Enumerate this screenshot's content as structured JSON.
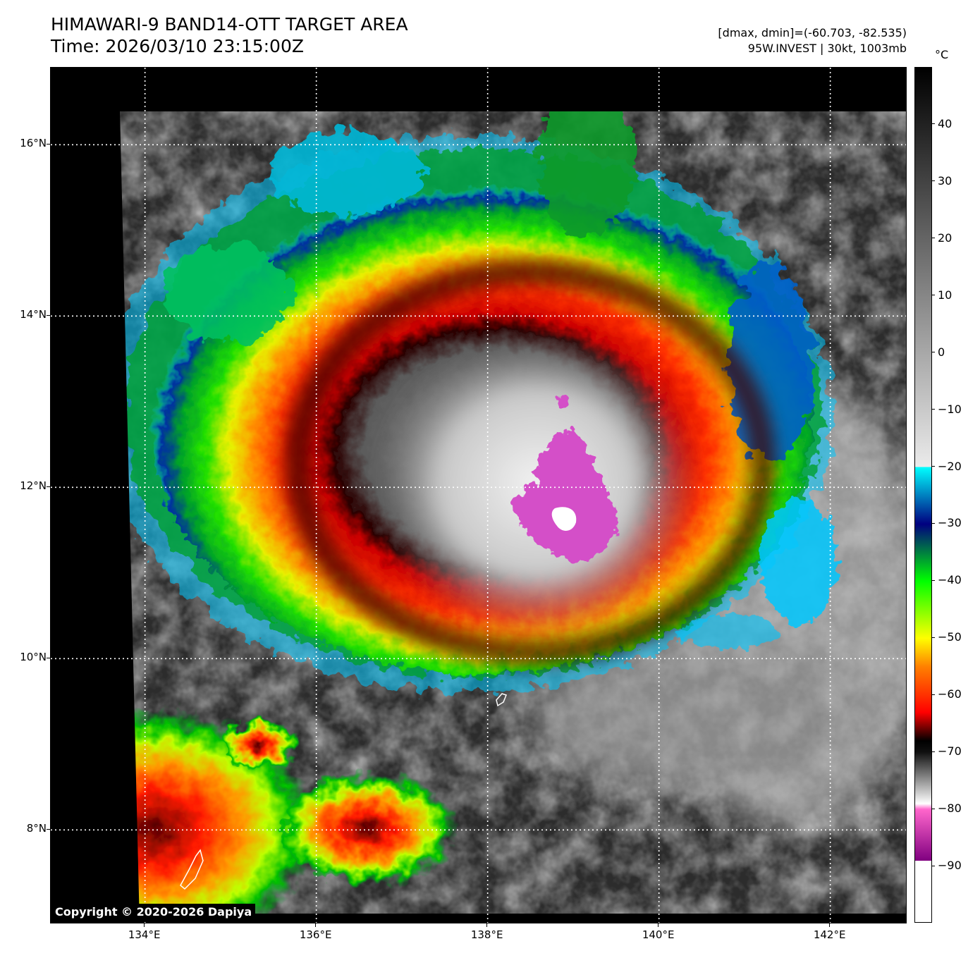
{
  "header": {
    "title_line1": "HIMAWARI-9 BAND14-OTT TARGET AREA",
    "title_line2": "Time: 2026/03/10 23:15:00Z",
    "info_line1": "[dmax, dmin]=(-60.703, -82.535)",
    "info_line2": "95W.INVEST | 30kt, 1003mb"
  },
  "map": {
    "lon_range": [
      132.9,
      142.9
    ],
    "lat_range": [
      6.9,
      16.9
    ],
    "lat_lines": [
      8,
      10,
      12,
      14,
      16
    ],
    "lon_lines": [
      134,
      136,
      138,
      140,
      142
    ],
    "lat_labels": [
      "16°N",
      "14°N",
      "12°N",
      "10°N",
      "8°N"
    ],
    "lon_labels": [
      "134°E",
      "136°E",
      "138°E",
      "140°E",
      "142°E"
    ],
    "storm_center": {
      "lon": 138.9,
      "lat": 11.6
    },
    "copyright": "Copyright © 2020-2026 Dapiya"
  },
  "colorbar": {
    "unit": "°C",
    "range": [
      -100,
      50
    ],
    "tick_values": [
      40,
      30,
      20,
      10,
      0,
      -10,
      -20,
      -30,
      -40,
      -50,
      -60,
      -70,
      -80,
      -90
    ],
    "tick_labels": [
      "40",
      "30",
      "20",
      "10",
      "0",
      "−10",
      "−20",
      "−30",
      "−40",
      "−50",
      "−60",
      "−70",
      "−80",
      "−90"
    ],
    "stops": [
      {
        "t": 50,
        "color": "#000000"
      },
      {
        "t": -20,
        "color": "#ebebeb"
      },
      {
        "t": -20,
        "color": "#00ffff"
      },
      {
        "t": -30,
        "color": "#000080"
      },
      {
        "t": -40,
        "color": "#00ff00"
      },
      {
        "t": -50,
        "color": "#ffff00"
      },
      {
        "t": -55,
        "color": "#ff8000"
      },
      {
        "t": -63,
        "color": "#ff0000"
      },
      {
        "t": -68,
        "color": "#000000"
      },
      {
        "t": -70,
        "color": "#111111"
      },
      {
        "t": -79,
        "color": "#ffffff"
      },
      {
        "t": -80,
        "color": "#ff66cc"
      },
      {
        "t": -89,
        "color": "#800080"
      },
      {
        "t": -89,
        "color": "#ffffff"
      },
      {
        "t": -100,
        "color": "#ffffff"
      }
    ]
  }
}
